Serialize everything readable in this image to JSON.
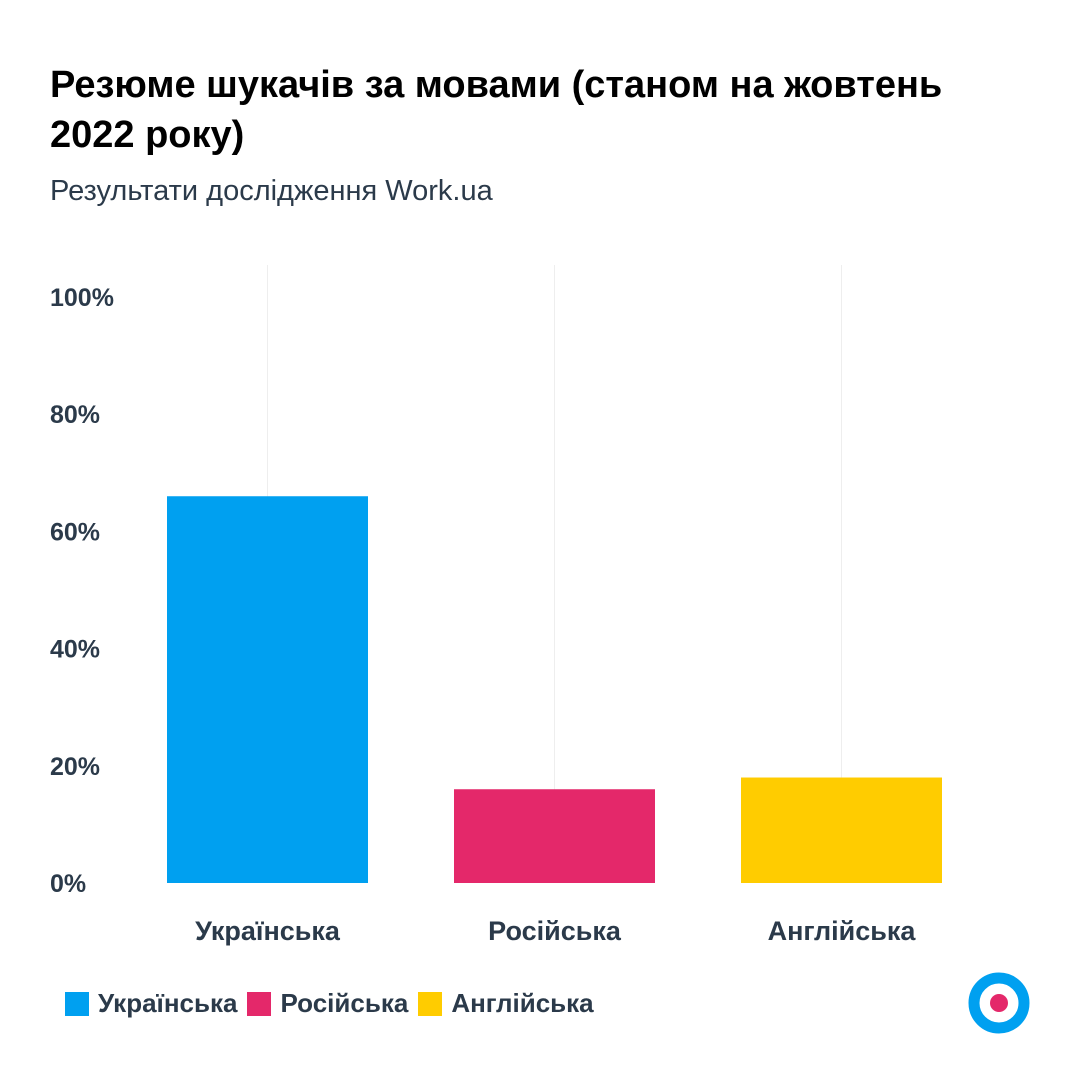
{
  "header": {
    "title": "Резюме шукачів за мовами (станом на жовтень 2022 року)",
    "subtitle": "Результати дослідження Work.ua"
  },
  "colors": {
    "ukrainian": "#00a0f0",
    "russian": "#e4286a",
    "english": "#ffcc00",
    "logo_ring": "#00a0f0",
    "logo_dot": "#e4286a"
  },
  "chart_data": {
    "type": "bar",
    "title": "Резюме шукачів за мовами (станом на жовтень 2022 року)",
    "subtitle": "Результати дослідження Work.ua",
    "categories": [
      "Українська",
      "Російська",
      "Англійська"
    ],
    "values": [
      66,
      16,
      18
    ],
    "colors": [
      "#00a0f0",
      "#e4286a",
      "#ffcc00"
    ],
    "ylim": [
      0,
      100
    ],
    "yticks": [
      0,
      20,
      40,
      60,
      80,
      100
    ],
    "ytick_labels": [
      "0%",
      "20%",
      "40%",
      "60%",
      "80%",
      "100%"
    ],
    "xlabel": "",
    "ylabel": "",
    "grid": "vertical",
    "legend": {
      "position": "bottom-left",
      "entries": [
        "Українська",
        "Російська",
        "Англійська"
      ]
    }
  },
  "logo": {
    "icon": "work-ua-logo-icon"
  }
}
